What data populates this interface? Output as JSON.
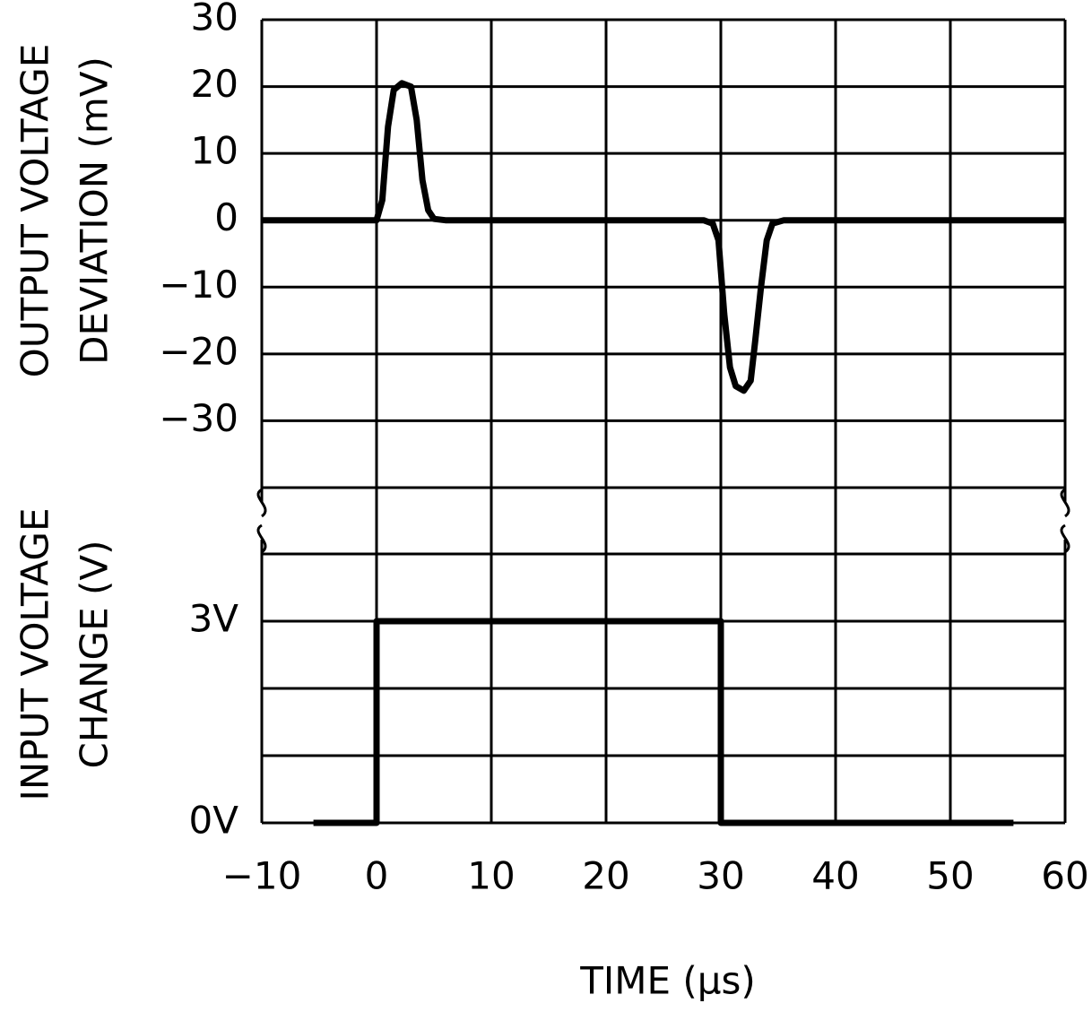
{
  "chart_data": [
    {
      "type": "line",
      "ylabel": [
        "OUTPUT VOLTAGE",
        "DEVIATION (mV)"
      ],
      "xlim": [
        -10,
        60
      ],
      "xticks": [
        -10,
        0,
        10,
        20,
        30,
        40,
        50,
        60
      ],
      "ylim": [
        -40,
        30
      ],
      "yticks": [
        {
          "value": -30,
          "label": "−30"
        },
        {
          "value": -20,
          "label": "−20"
        },
        {
          "value": -10,
          "label": "−10"
        },
        0,
        10,
        20,
        30
      ],
      "grid": true,
      "series": [
        {
          "color": "#000000",
          "x": [
            -10,
            0,
            0.5,
            1,
            1.5,
            2.2,
            3,
            3.5,
            4,
            4.5,
            5,
            6,
            28.5,
            29.3,
            29.8,
            30.3,
            30.8,
            31.3,
            32,
            32.6,
            33,
            33.5,
            34,
            34.5,
            35.5,
            60
          ],
          "values": [
            0,
            0,
            3,
            14,
            19.5,
            20.5,
            20,
            15,
            6,
            1.5,
            0.2,
            0,
            0,
            -0.5,
            -3,
            -14,
            -22,
            -24.8,
            -25.5,
            -24,
            -18,
            -10,
            -3,
            -0.5,
            0,
            0
          ]
        }
      ]
    },
    {
      "type": "line",
      "ylabel": [
        "INPUT VOLTAGE",
        "CHANGE (V)"
      ],
      "xlabel": "TIME (μs)",
      "xlim": [
        -10,
        60
      ],
      "xticks": [
        {
          "value": -10,
          "label": "−10"
        },
        0,
        10,
        20,
        30,
        40,
        50,
        60
      ],
      "ylim": [
        0,
        4
      ],
      "yticks": [
        {
          "value": 0,
          "label": "0V"
        },
        {
          "value": 3,
          "label": "3V"
        }
      ],
      "minor_yticks": [
        1,
        2,
        4
      ],
      "grid": true,
      "series": [
        {
          "color": "#000000",
          "x": [
            -5.5,
            0,
            0,
            30,
            30,
            55.5
          ],
          "values": [
            0,
            0,
            3,
            3,
            0,
            0
          ]
        }
      ]
    }
  ]
}
